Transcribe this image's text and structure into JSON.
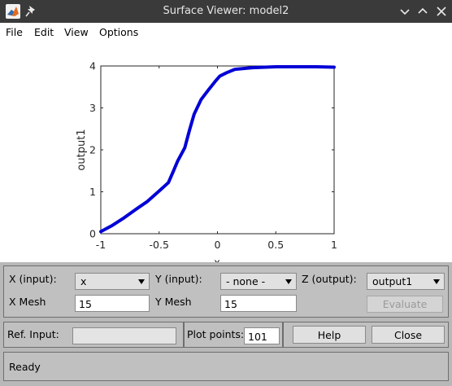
{
  "window": {
    "title": "Surface Viewer: model2"
  },
  "menu": [
    "File",
    "Edit",
    "View",
    "Options"
  ],
  "chart_data": {
    "type": "line",
    "title": "",
    "xlabel": "x",
    "ylabel": "output1",
    "xlim": [
      -1,
      1
    ],
    "ylim": [
      0,
      4
    ],
    "x_ticks": [
      "-1",
      "-0.5",
      "0",
      "0.5",
      "1"
    ],
    "y_ticks": [
      "0",
      "1",
      "2",
      "3",
      "4"
    ],
    "grid": false,
    "series": [
      {
        "color": "#0000d6",
        "x": [
          -1,
          -0.9,
          -0.8,
          -0.7,
          -0.6,
          -0.5,
          -0.42,
          -0.38,
          -0.34,
          -0.28,
          -0.24,
          -0.2,
          -0.14,
          -0.08,
          -0.02,
          0.02,
          0.08,
          0.15,
          0.3,
          0.5,
          0.7,
          0.85,
          1
        ],
        "y": [
          0.05,
          0.2,
          0.38,
          0.58,
          0.77,
          1.02,
          1.22,
          1.48,
          1.74,
          2.05,
          2.47,
          2.85,
          3.2,
          3.42,
          3.63,
          3.76,
          3.84,
          3.92,
          3.96,
          3.98,
          3.98,
          3.98,
          3.97
        ]
      }
    ]
  },
  "controls": {
    "x_input_label": "X (input):",
    "x_input_value": "x",
    "y_input_label": "Y (input):",
    "y_input_value": "- none -",
    "z_output_label": "Z (output):",
    "z_output_value": "output1",
    "x_mesh_label": "X Mesh",
    "x_mesh_value": "15",
    "y_mesh_label": "Y Mesh",
    "y_mesh_value": "15",
    "evaluate_label": "Evaluate",
    "ref_input_label": "Ref. Input:",
    "ref_input_value": "",
    "plot_points_label": "Plot points:",
    "plot_points_value": "101",
    "help_label": "Help",
    "close_label": "Close",
    "status": "Ready"
  }
}
